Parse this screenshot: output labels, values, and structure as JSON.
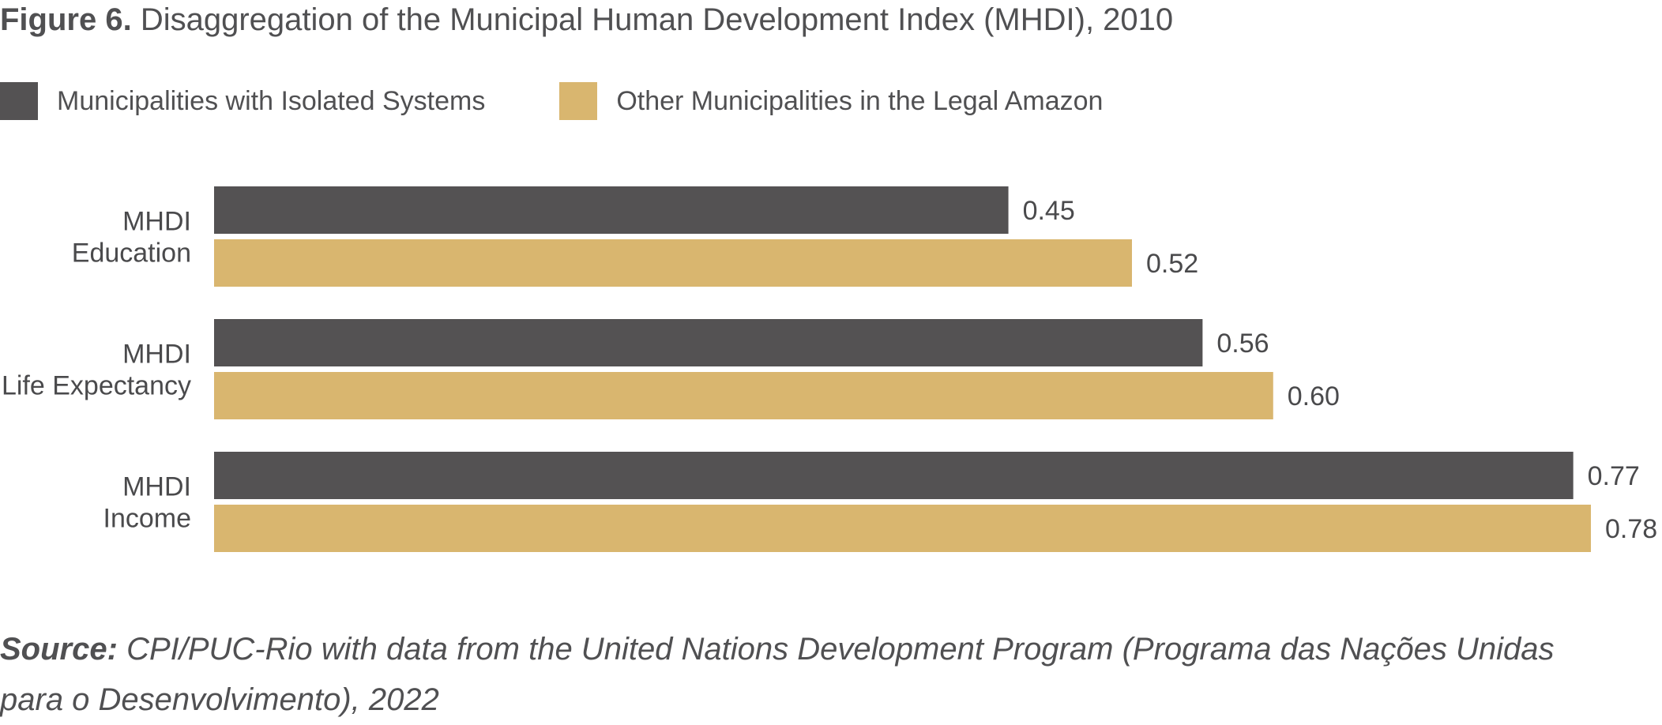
{
  "figure": {
    "prefix": "Figure 6.",
    "title": "Disaggregation of the Municipal Human Development Index (MHDI), 2010"
  },
  "source": {
    "prefix": "Source:",
    "text": "CPI/PUC-Rio with data from the United Nations Development Program (Programa das Nações Unidas para o Desenvolvimento), 2022"
  },
  "chart_data": {
    "type": "bar",
    "orientation": "horizontal",
    "title": "Disaggregation of the Municipal Human Development Index (MHDI), 2010",
    "categories": [
      [
        "MHDI",
        "Education"
      ],
      [
        "MHDI",
        "Life Expectancy"
      ],
      [
        "MHDI",
        "Income"
      ]
    ],
    "series": [
      {
        "name": "Municipalities with Isolated Systems",
        "color": "#545253",
        "values": [
          0.45,
          0.56,
          0.77
        ],
        "labels": [
          "0.45",
          "0.56",
          "0.77"
        ]
      },
      {
        "name": "Other Municipalities in the Legal Amazon",
        "color": "#d9b66f",
        "values": [
          0.52,
          0.6,
          0.78
        ],
        "labels": [
          "0.52",
          "0.60",
          "0.78"
        ]
      }
    ],
    "xlim": [
      0,
      0.78
    ],
    "grid": false,
    "legend_position": "top-left",
    "data_labels": true
  }
}
